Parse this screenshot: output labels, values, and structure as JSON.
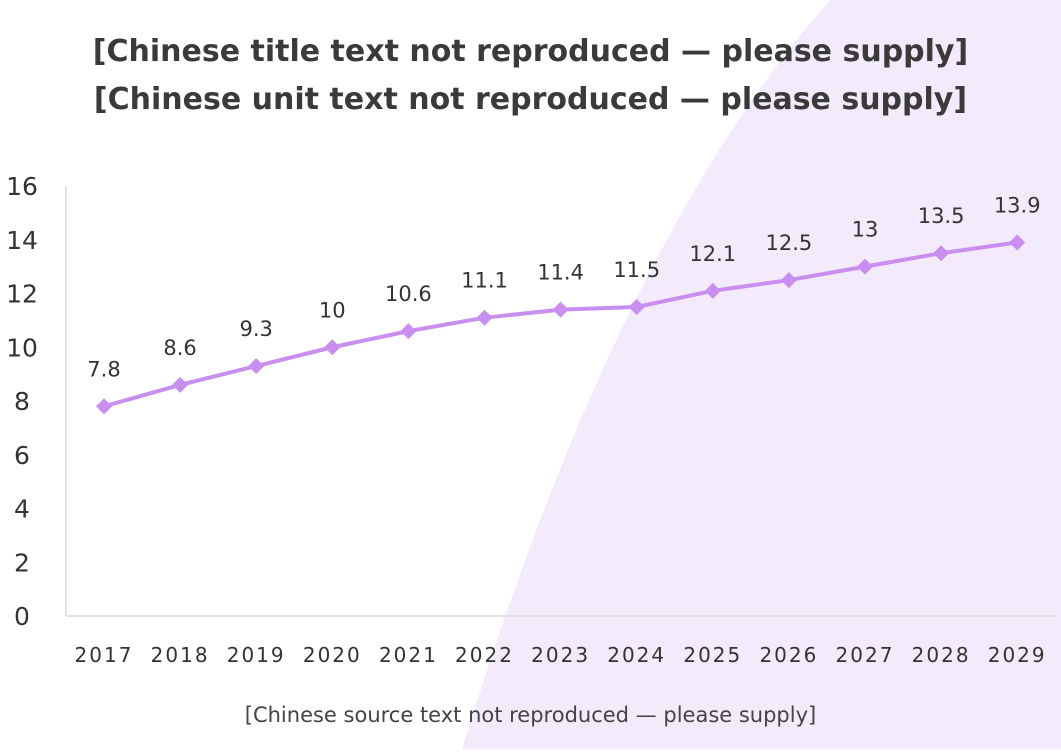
{
  "title": {
    "line1": "[Chinese title text not reproduced — please supply]",
    "line2": "[Chinese unit text not reproduced — please supply]"
  },
  "source": {
    "text": "[Chinese source text not reproduced — please supply]"
  },
  "colors": {
    "series": "#c88ef0",
    "marker": "#c88ef0",
    "axis": "#d9d9d9",
    "decor": "#f3eafb"
  },
  "chart_data": {
    "type": "line",
    "title": "[Chinese title text not reproduced — please supply]",
    "ylabel": "",
    "xlabel": "",
    "ylim": [
      0,
      16
    ],
    "yticks": [
      0,
      2,
      4,
      6,
      8,
      10,
      12,
      14,
      16
    ],
    "x": [
      "2017",
      "2018",
      "2019",
      "2020",
      "2021",
      "2022",
      "2023",
      "2024",
      "2025",
      "2026",
      "2027",
      "2028",
      "2029"
    ],
    "series": [
      {
        "name": "",
        "values": [
          7.8,
          8.6,
          9.3,
          10,
          10.6,
          11.1,
          11.4,
          11.5,
          12.1,
          12.5,
          13,
          13.5,
          13.9
        ],
        "labels": [
          "7.8",
          "8.6",
          "9.3",
          "10",
          "10.6",
          "11.1",
          "11.4",
          "11.5",
          "12.1",
          "12.5",
          "13",
          "13.5",
          "13.9"
        ],
        "marker": "diamond"
      }
    ],
    "grid": false,
    "legend": "none"
  }
}
